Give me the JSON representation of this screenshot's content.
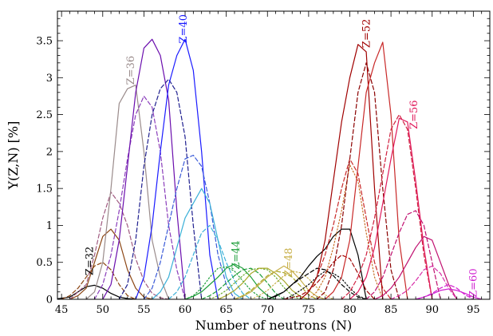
{
  "chart_data": {
    "type": "line",
    "title": "",
    "xlabel": "Number of neutrons (N)",
    "ylabel": "Y(Z,N) [%]",
    "xlim": [
      44.5,
      97
    ],
    "ylim": [
      0,
      3.9
    ],
    "xticks": [
      "45",
      "50",
      "55",
      "60",
      "65",
      "70",
      "75",
      "80",
      "85",
      "90",
      "95"
    ],
    "yticks": [
      "0",
      "0.5",
      "1",
      "1.5",
      "2",
      "2.5",
      "3",
      "3.5"
    ],
    "minor_ticks": true,
    "grid": false,
    "legend": "none",
    "annotations": [
      {
        "text": "Z=32",
        "x": 48.8,
        "y": 0.52,
        "color": "#000000"
      },
      {
        "text": "Z=36",
        "x": 53.8,
        "y": 3.1,
        "color": "#9a8b8b"
      },
      {
        "text": "Z=40",
        "x": 60.2,
        "y": 3.66,
        "color": "#1a1aff"
      },
      {
        "text": "Z=44",
        "x": 66.6,
        "y": 0.6,
        "color": "#1e9e3a"
      },
      {
        "text": "Z=48",
        "x": 73.0,
        "y": 0.5,
        "color": "#c8b04a"
      },
      {
        "text": "Z=52",
        "x": 82.4,
        "y": 3.6,
        "color": "#a00000"
      },
      {
        "text": "Z=56",
        "x": 88.2,
        "y": 2.5,
        "color": "#e0185a"
      },
      {
        "text": "Z=60",
        "x": 95.4,
        "y": 0.22,
        "color": "#d020d0"
      }
    ],
    "series": [
      {
        "color": "#000000",
        "style": "solid",
        "x": [
          44,
          46,
          47,
          48,
          49,
          50,
          51,
          52,
          53,
          54
        ],
        "y": [
          0,
          0.03,
          0.1,
          0.17,
          0.19,
          0.15,
          0.08,
          0.03,
          0.01,
          0
        ]
      },
      {
        "color": "#8b4513",
        "style": "dashed",
        "x": [
          45,
          46,
          47,
          48,
          49,
          50,
          51,
          52,
          53,
          54
        ],
        "y": [
          0,
          0.05,
          0.15,
          0.3,
          0.45,
          0.5,
          0.4,
          0.2,
          0.05,
          0
        ]
      },
      {
        "color": "#8b4513",
        "style": "solid",
        "x": [
          46,
          47,
          48,
          49,
          50,
          51,
          52,
          53,
          54,
          55,
          56
        ],
        "y": [
          0,
          0.05,
          0.15,
          0.5,
          0.85,
          0.95,
          0.8,
          0.4,
          0.15,
          0.03,
          0
        ]
      },
      {
        "color": "#a05a80",
        "style": "dashed",
        "x": [
          46,
          48,
          49,
          50,
          51,
          52,
          53,
          54,
          55,
          56,
          57,
          58
        ],
        "y": [
          0,
          0.2,
          0.6,
          1.1,
          1.45,
          1.3,
          1,
          0.55,
          0.25,
          0.08,
          0.02,
          0
        ]
      },
      {
        "color": "#9a8b8b",
        "style": "solid",
        "x": [
          48,
          49,
          50,
          51,
          52,
          53,
          54,
          55,
          56,
          57,
          58
        ],
        "y": [
          0,
          0.1,
          0.5,
          1.5,
          2.65,
          2.85,
          2.9,
          2.0,
          0.8,
          0.3,
          0
        ]
      },
      {
        "color": "#8a3dbb",
        "style": "dashed",
        "x": [
          49,
          50,
          51,
          52,
          53,
          54,
          55,
          56,
          57,
          58,
          59,
          60
        ],
        "y": [
          0,
          0.2,
          0.6,
          1.2,
          1.9,
          2.5,
          2.75,
          2.6,
          2.0,
          1.0,
          0.4,
          0
        ]
      },
      {
        "color": "#6a0dad",
        "style": "solid",
        "x": [
          50,
          51,
          52,
          53,
          54,
          55,
          56,
          57,
          58,
          59,
          60
        ],
        "y": [
          0,
          0.2,
          0.8,
          1.8,
          2.8,
          3.4,
          3.52,
          3.3,
          2.7,
          1.2,
          0
        ]
      },
      {
        "color": "#1f1f8f",
        "style": "dashed",
        "x": [
          52,
          53,
          54,
          55,
          56,
          57,
          58,
          59,
          60,
          61,
          62
        ],
        "y": [
          0,
          0.2,
          0.8,
          1.8,
          2.5,
          2.85,
          2.98,
          2.8,
          2.2,
          1.0,
          0
        ]
      },
      {
        "color": "#1a1aff",
        "style": "solid",
        "x": [
          54,
          55,
          56,
          57,
          58,
          59,
          60,
          61,
          62,
          63,
          64
        ],
        "y": [
          0,
          0.3,
          1.0,
          2.0,
          2.9,
          3.3,
          3.52,
          3.1,
          2.0,
          0.6,
          0
        ]
      },
      {
        "color": "#3a5ad8",
        "style": "dashed",
        "x": [
          55,
          56,
          57,
          58,
          59,
          60,
          61,
          62,
          63,
          64,
          65,
          66
        ],
        "y": [
          0,
          0.15,
          0.5,
          1.0,
          1.5,
          1.9,
          1.95,
          1.8,
          1.3,
          0.6,
          0.2,
          0
        ]
      },
      {
        "color": "#3bb0d8",
        "style": "solid",
        "x": [
          56,
          57,
          58,
          59,
          60,
          61,
          62,
          63,
          64,
          65,
          66,
          67
        ],
        "y": [
          0,
          0.1,
          0.3,
          0.7,
          1.1,
          1.3,
          1.5,
          1.3,
          0.8,
          0.3,
          0.08,
          0
        ]
      },
      {
        "color": "#3bb0d8",
        "style": "dashed",
        "x": [
          58,
          59,
          60,
          61,
          62,
          63,
          64,
          65,
          66,
          67,
          68
        ],
        "y": [
          0,
          0.1,
          0.3,
          0.6,
          0.9,
          1.0,
          0.8,
          0.5,
          0.25,
          0.08,
          0
        ]
      },
      {
        "color": "#1e9e3a",
        "style": "dotted",
        "x": [
          60,
          61,
          62,
          63,
          64,
          65,
          66,
          67,
          68,
          69,
          70
        ],
        "y": [
          0,
          0.05,
          0.15,
          0.3,
          0.42,
          0.44,
          0.38,
          0.25,
          0.12,
          0.04,
          0
        ]
      },
      {
        "color": "#1e9e3a",
        "style": "solid",
        "x": [
          60,
          61,
          62,
          63,
          64,
          65,
          66,
          67,
          68,
          69,
          70,
          71
        ],
        "y": [
          0,
          0.04,
          0.1,
          0.2,
          0.3,
          0.42,
          0.48,
          0.42,
          0.3,
          0.15,
          0.05,
          0
        ]
      },
      {
        "color": "#1e9e3a",
        "style": "dashed",
        "x": [
          62,
          63,
          64,
          65,
          66,
          67,
          68,
          69,
          70,
          71,
          72
        ],
        "y": [
          0,
          0.05,
          0.12,
          0.22,
          0.32,
          0.4,
          0.42,
          0.35,
          0.22,
          0.08,
          0
        ]
      },
      {
        "color": "#6aaa2a",
        "style": "dotted",
        "x": [
          63,
          64,
          65,
          66,
          67,
          68,
          69,
          70,
          71,
          72,
          73,
          74
        ],
        "y": [
          0,
          0.05,
          0.12,
          0.22,
          0.32,
          0.4,
          0.42,
          0.4,
          0.3,
          0.16,
          0.05,
          0
        ]
      },
      {
        "color": "#a8a82a",
        "style": "solid",
        "x": [
          64,
          65,
          66,
          67,
          68,
          69,
          70,
          71,
          72,
          73,
          74,
          75
        ],
        "y": [
          0,
          0.05,
          0.12,
          0.22,
          0.35,
          0.42,
          0.42,
          0.35,
          0.25,
          0.12,
          0.04,
          0
        ]
      },
      {
        "color": "#a8a82a",
        "style": "dashed",
        "x": [
          66,
          67,
          68,
          69,
          70,
          71,
          72,
          73,
          74,
          75,
          76
        ],
        "y": [
          0,
          0.05,
          0.12,
          0.22,
          0.32,
          0.38,
          0.36,
          0.3,
          0.18,
          0.06,
          0
        ]
      },
      {
        "color": "#c8b04a",
        "style": "solid",
        "x": [
          66,
          67,
          68,
          69,
          70,
          71,
          72,
          73,
          74,
          75,
          76,
          77
        ],
        "y": [
          0,
          0.04,
          0.1,
          0.2,
          0.3,
          0.38,
          0.45,
          0.38,
          0.26,
          0.12,
          0.04,
          0
        ]
      },
      {
        "color": "#c8b04a",
        "style": "dotted",
        "x": [
          68,
          69,
          70,
          71,
          72,
          73,
          74,
          75,
          76,
          77,
          78
        ],
        "y": [
          0,
          0.05,
          0.12,
          0.22,
          0.32,
          0.38,
          0.36,
          0.28,
          0.16,
          0.06,
          0
        ]
      },
      {
        "color": "#000000",
        "style": "dashed",
        "x": [
          70,
          71,
          72,
          73,
          74,
          75,
          76,
          77,
          78,
          79,
          80,
          81,
          82
        ],
        "y": [
          0,
          0.04,
          0.1,
          0.2,
          0.28,
          0.35,
          0.42,
          0.4,
          0.32,
          0.2,
          0.1,
          0.03,
          0
        ]
      },
      {
        "color": "#000000",
        "style": "dotted",
        "x": [
          72,
          73,
          74,
          75,
          76,
          77,
          78,
          79,
          80,
          81,
          82
        ],
        "y": [
          0,
          0.05,
          0.12,
          0.2,
          0.3,
          0.38,
          0.35,
          0.28,
          0.15,
          0.05,
          0
        ]
      },
      {
        "color": "#000000",
        "style": "solid",
        "x": [
          70,
          72,
          74,
          75,
          76,
          77,
          78,
          79,
          80,
          81,
          82
        ],
        "y": [
          0,
          0.1,
          0.3,
          0.45,
          0.58,
          0.68,
          0.85,
          0.95,
          0.95,
          0.6,
          0
        ]
      },
      {
        "color": "#a00000",
        "style": "dashed",
        "x": [
          72,
          74,
          75,
          76,
          77,
          78,
          79,
          80,
          81,
          82,
          83
        ],
        "y": [
          0,
          0.05,
          0.12,
          0.22,
          0.35,
          0.5,
          0.6,
          0.55,
          0.35,
          0.12,
          0
        ]
      },
      {
        "color": "#c87028",
        "style": "dotted",
        "x": [
          75,
          76,
          77,
          78,
          79,
          80,
          81,
          82,
          83,
          84
        ],
        "y": [
          0,
          0.1,
          0.3,
          0.7,
          1.2,
          1.82,
          1.6,
          0.9,
          0.3,
          0
        ]
      },
      {
        "color": "#c82828",
        "style": "dashed",
        "x": [
          74,
          75,
          76,
          77,
          78,
          79,
          80,
          81,
          82,
          83,
          84,
          85
        ],
        "y": [
          0,
          0.1,
          0.3,
          0.6,
          1.0,
          1.5,
          1.9,
          1.7,
          1.1,
          0.5,
          0.15,
          0
        ]
      },
      {
        "color": "#a00000",
        "style": "solid",
        "x": [
          74,
          75,
          76,
          77,
          78,
          79,
          80,
          81,
          82,
          83,
          84
        ],
        "y": [
          0,
          0.1,
          0.3,
          0.8,
          1.6,
          2.4,
          3.0,
          3.45,
          3.35,
          1.5,
          0
        ]
      },
      {
        "color": "#8b0000",
        "style": "dashed",
        "x": [
          76,
          77,
          78,
          79,
          80,
          81,
          82,
          83,
          84,
          85,
          86
        ],
        "y": [
          0,
          0.1,
          0.4,
          1.0,
          1.9,
          2.8,
          3.2,
          2.8,
          1.5,
          0.4,
          0
        ]
      },
      {
        "color": "#c82828",
        "style": "solid",
        "x": [
          77,
          78,
          79,
          80,
          81,
          82,
          83,
          84,
          85,
          86,
          87
        ],
        "y": [
          0,
          0.1,
          0.3,
          0.8,
          1.8,
          2.8,
          3.2,
          3.48,
          2.5,
          0.8,
          0
        ]
      },
      {
        "color": "#d02040",
        "style": "dashed",
        "x": [
          79,
          80,
          81,
          82,
          83,
          84,
          85,
          86,
          87,
          88,
          89,
          90
        ],
        "y": [
          0,
          0.1,
          0.3,
          0.6,
          1.1,
          1.7,
          2.3,
          2.5,
          2.3,
          1.5,
          0.6,
          0
        ]
      },
      {
        "color": "#e0185a",
        "style": "solid",
        "x": [
          80,
          81,
          82,
          83,
          84,
          85,
          86,
          87,
          88,
          89,
          90
        ],
        "y": [
          0,
          0.1,
          0.3,
          0.7,
          1.3,
          1.9,
          2.45,
          2.4,
          1.6,
          0.7,
          0
        ]
      },
      {
        "color": "#c01070",
        "style": "dashed",
        "x": [
          82,
          83,
          84,
          85,
          86,
          87,
          88,
          89,
          90,
          91
        ],
        "y": [
          0,
          0.1,
          0.3,
          0.6,
          0.9,
          1.15,
          1.2,
          1.0,
          0.5,
          0
        ]
      },
      {
        "color": "#c01070",
        "style": "solid",
        "x": [
          83,
          84,
          85,
          86,
          87,
          88,
          89,
          90,
          91,
          92,
          93
        ],
        "y": [
          0,
          0.05,
          0.15,
          0.3,
          0.5,
          0.7,
          0.85,
          0.8,
          0.5,
          0.2,
          0
        ]
      },
      {
        "color": "#d830a8",
        "style": "dashed",
        "x": [
          85,
          86,
          87,
          88,
          89,
          90,
          91,
          92,
          93
        ],
        "y": [
          0,
          0.05,
          0.12,
          0.25,
          0.4,
          0.45,
          0.35,
          0.15,
          0
        ]
      },
      {
        "color": "#d020d0",
        "style": "dashed",
        "x": [
          88,
          89,
          90,
          91,
          92,
          93,
          94,
          95
        ],
        "y": [
          0,
          0.03,
          0.08,
          0.15,
          0.2,
          0.15,
          0.06,
          0
        ]
      },
      {
        "color": "#d020d0",
        "style": "solid",
        "x": [
          88,
          89,
          90,
          91,
          92,
          93,
          94,
          95,
          96
        ],
        "y": [
          0,
          0.03,
          0.07,
          0.12,
          0.14,
          0.12,
          0.08,
          0.03,
          0
        ]
      }
    ]
  }
}
